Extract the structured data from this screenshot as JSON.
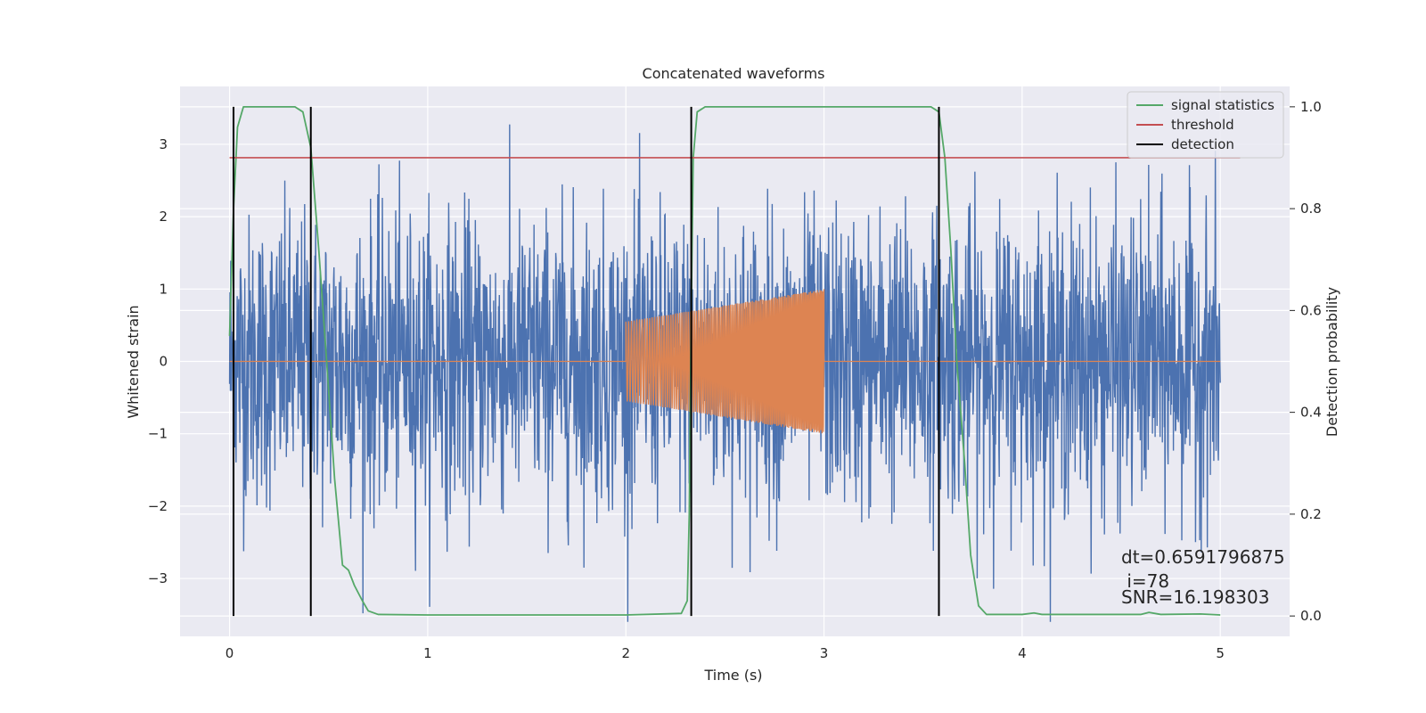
{
  "chart_data": {
    "type": "line",
    "title": "Concatenated waveforms",
    "xlabel": "Time (s)",
    "ylabel_left": "Whitened strain",
    "ylabel_right": "Detection probability",
    "xlim": [
      -0.25,
      5.35
    ],
    "ylim_left": [
      -3.8,
      3.8
    ],
    "ylim_right": [
      -0.04,
      1.04
    ],
    "x_ticks": [
      0,
      1,
      2,
      3,
      4,
      5
    ],
    "x_tick_labels": [
      "0",
      "1",
      "2",
      "3",
      "4",
      "5"
    ],
    "y_left_ticks": [
      -3,
      -2,
      -1,
      0,
      1,
      2,
      3
    ],
    "y_left_tick_labels": [
      "−3",
      "−2",
      "−1",
      "0",
      "1",
      "2",
      "3"
    ],
    "y_right_ticks": [
      0.0,
      0.2,
      0.4,
      0.6,
      0.8,
      1.0
    ],
    "y_right_tick_labels": [
      "0.0",
      "0.2",
      "0.4",
      "0.6",
      "0.8",
      "1.0"
    ],
    "grid": true,
    "legend_position": "upper right",
    "colors": {
      "background": "#eaeaf2",
      "grid": "#ffffff",
      "strain": "#4c72b0",
      "injected": "#dd8452",
      "signal_statistics": "#55a868",
      "threshold": "#c44e52",
      "detection": "#000000"
    },
    "series": [
      {
        "name": "",
        "role": "whitened strain noise",
        "axis": "left",
        "x_range": [
          0,
          5
        ],
        "typical_amplitude": 1.0,
        "peak_amplitude": 3.6
      },
      {
        "name": "",
        "role": "injected chirp",
        "axis": "left",
        "x_range": [
          2.0,
          3.0
        ],
        "envelope_start": 0.55,
        "envelope_end": 1.0
      },
      {
        "name": "signal statistics",
        "axis": "right",
        "points": [
          [
            0.0,
            0.55
          ],
          [
            0.02,
            0.8
          ],
          [
            0.04,
            0.96
          ],
          [
            0.07,
            1.0
          ],
          [
            0.33,
            1.0
          ],
          [
            0.37,
            0.99
          ],
          [
            0.41,
            0.92
          ],
          [
            0.45,
            0.72
          ],
          [
            0.49,
            0.5
          ],
          [
            0.53,
            0.27
          ],
          [
            0.57,
            0.1
          ],
          [
            0.6,
            0.09
          ],
          [
            0.63,
            0.06
          ],
          [
            0.67,
            0.03
          ],
          [
            0.7,
            0.01
          ],
          [
            0.75,
            0.003
          ],
          [
            1.0,
            0.002
          ],
          [
            2.0,
            0.002
          ],
          [
            2.28,
            0.005
          ],
          [
            2.31,
            0.03
          ],
          [
            2.32,
            0.2
          ],
          [
            2.33,
            0.6
          ],
          [
            2.34,
            0.9
          ],
          [
            2.36,
            0.99
          ],
          [
            2.4,
            1.0
          ],
          [
            3.54,
            1.0
          ],
          [
            3.58,
            0.99
          ],
          [
            3.61,
            0.9
          ],
          [
            3.64,
            0.72
          ],
          [
            3.67,
            0.5
          ],
          [
            3.71,
            0.3
          ],
          [
            3.74,
            0.12
          ],
          [
            3.78,
            0.02
          ],
          [
            3.82,
            0.003
          ],
          [
            4.0,
            0.003
          ],
          [
            4.06,
            0.006
          ],
          [
            4.1,
            0.003
          ],
          [
            4.6,
            0.003
          ],
          [
            4.64,
            0.007
          ],
          [
            4.7,
            0.003
          ],
          [
            4.9,
            0.004
          ],
          [
            5.0,
            0.002
          ]
        ]
      },
      {
        "name": "threshold",
        "axis": "right",
        "value": 0.9,
        "x_range": [
          0,
          5.1
        ]
      },
      {
        "name": "detection",
        "axis": "right",
        "x": [
          0.02,
          0.41,
          2.33,
          3.58
        ],
        "y_range": [
          0.0,
          1.0
        ]
      }
    ],
    "legend": [
      "signal statistics",
      "threshold",
      "detection"
    ],
    "annotations": [
      "dt=0.6591796875",
      " i=78",
      "SNR=16.198303"
    ]
  }
}
